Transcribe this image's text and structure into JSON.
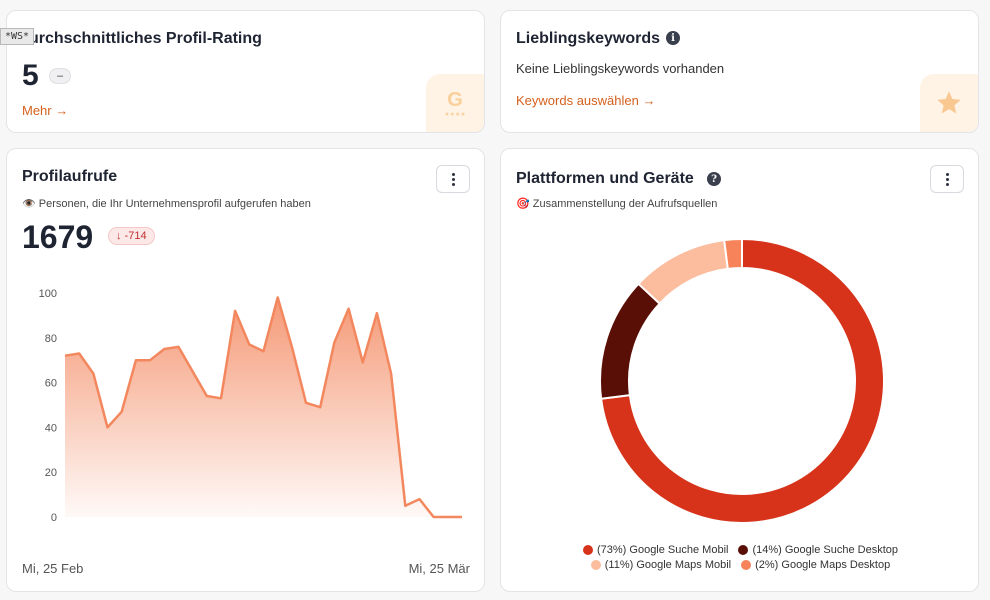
{
  "ws_tag": "*WS*",
  "rating_card": {
    "title": "urchschnittliches Profil-Rating",
    "value": "5",
    "delta": "–",
    "more_link": "Mehr →",
    "badge_icon": "google-rating-icon"
  },
  "keywords_card": {
    "title": "Lieblingskeywords",
    "info_icon": "i",
    "empty_text": "Keine Lieblingskeywords vorhanden",
    "select_link": "Keywords auswählen →",
    "badge_icon": "star-icon"
  },
  "views_card": {
    "title": "Profilaufrufe",
    "subtitle": "👁️ Personen, die Ihr Unternehmensprofil aufgerufen haben",
    "value": "1679",
    "delta": "↓ -714",
    "date_start": "Mi, 25 Feb",
    "date_end": "Mi, 25 Mär",
    "chart_data": {
      "type": "area",
      "y_ticks": [
        "100",
        "80",
        "60",
        "40",
        "20",
        "0"
      ],
      "ylim": [
        0,
        100
      ],
      "color": "#f3875e",
      "values": [
        72,
        73,
        64,
        40,
        47,
        70,
        70,
        75,
        76,
        65,
        54,
        53,
        92,
        77,
        74,
        98,
        76,
        51,
        49,
        78,
        93,
        69,
        91,
        64,
        5,
        8,
        0,
        0,
        0
      ]
    }
  },
  "platforms_card": {
    "title": "Plattformen und Geräte",
    "help_icon": "?",
    "subtitle": "🎯 Zusammenstellung der Aufrufsquellen",
    "chart_data": {
      "type": "pie",
      "slices": [
        {
          "label": "(73%) Google Suche Mobil",
          "value": 73,
          "color": "#d6331a"
        },
        {
          "label": "(14%) Google Suche Desktop",
          "value": 14,
          "color": "#5a0f06"
        },
        {
          "label": "(11%) Google Maps Mobil",
          "value": 11,
          "color": "#fbbd9e"
        },
        {
          "label": "(2%) Google Maps Desktop",
          "value": 2,
          "color": "#f6835a"
        }
      ]
    }
  }
}
